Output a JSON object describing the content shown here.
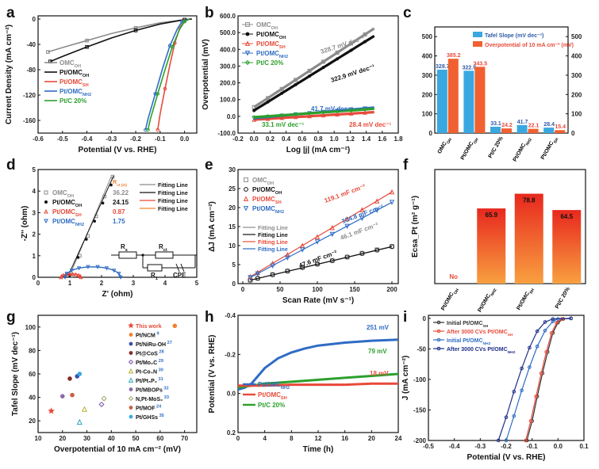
{
  "colors": {
    "ink": "#111111",
    "gray": "#8c8c8c",
    "red": "#e84a3a",
    "blue": "#2f6cc4",
    "green": "#2ca02c",
    "navy": "#1f2f8a",
    "orange": "#f08030",
    "lightblue": "#3aa8e0"
  },
  "panels": {
    "a": "a",
    "b": "b",
    "c": "c",
    "d": "d",
    "e": "e",
    "f": "f",
    "g": "g",
    "h": "h",
    "i": "i"
  },
  "chart_data": [
    {
      "id": "a",
      "type": "line",
      "xlabel": "Potential (V vs. RHE)",
      "ylabel": "Current Density (mA cm⁻²)",
      "xlim": [
        -0.6,
        0.05
      ],
      "ylim": [
        -180,
        5
      ],
      "xticks": [
        "-0.6",
        "-0.5",
        "-0.4",
        "-0.3",
        "-0.2",
        "-0.1",
        "0.0"
      ],
      "yticks": [
        "0",
        "-40",
        "-80",
        "-120",
        "-160"
      ],
      "legend": [
        "OMC_OH",
        "Pt/OMC_OH",
        "Pt/OMC_SH",
        "Pt/OMC_NH2",
        "Pt/C 20%"
      ],
      "series": [
        {
          "name": "OMC_OH",
          "color": "#8c8c8c",
          "x": [
            -0.56,
            -0.5,
            -0.4,
            -0.3,
            -0.2,
            -0.1,
            0.0,
            0.03
          ],
          "y": [
            -52,
            -45,
            -34,
            -23,
            -14,
            -6,
            -1,
            0
          ]
        },
        {
          "name": "Pt/OMC_OH",
          "color": "#111111",
          "x": [
            -0.55,
            -0.5,
            -0.4,
            -0.3,
            -0.2,
            -0.1,
            0.0,
            0.03
          ],
          "y": [
            -67,
            -59,
            -44,
            -30,
            -18,
            -8,
            -1,
            0
          ]
        },
        {
          "name": "Pt/OMC_SH",
          "color": "#e84a3a",
          "x": [
            -0.11,
            -0.1,
            -0.08,
            -0.06,
            -0.04,
            -0.02,
            0.0,
            0.02
          ],
          "y": [
            -175,
            -150,
            -110,
            -72,
            -38,
            -14,
            -3,
            0
          ]
        },
        {
          "name": "Pt/OMC_NH2",
          "color": "#2f6cc4",
          "x": [
            -0.16,
            -0.15,
            -0.12,
            -0.09,
            -0.06,
            -0.03,
            -0.01,
            0.02
          ],
          "y": [
            -175,
            -158,
            -118,
            -78,
            -42,
            -16,
            -4,
            0
          ]
        },
        {
          "name": "Pt/C 20%",
          "color": "#2ca02c",
          "x": [
            -0.15,
            -0.14,
            -0.11,
            -0.08,
            -0.05,
            -0.02,
            0.0,
            0.02
          ],
          "y": [
            -175,
            -158,
            -118,
            -80,
            -44,
            -16,
            -4,
            0
          ]
        }
      ]
    },
    {
      "id": "b",
      "type": "line",
      "xlabel": "Log |j| (mA cm⁻²)",
      "ylabel": "Overpotential (mV)",
      "xlim": [
        -0.2,
        1.8
      ],
      "ylim": [
        -100,
        600
      ],
      "xticks": [
        "-0.2",
        "0.0",
        "0.2",
        "0.4",
        "0.6",
        "0.8",
        "1.0",
        "1.2",
        "1.4",
        "1.6",
        "1.8"
      ],
      "yticks": [
        "-100.0",
        "0.0",
        "100.0",
        "200.0",
        "300.0",
        "400.0",
        "500.0",
        "600.0"
      ],
      "legend": [
        "OMC_OH",
        "Pt/OMC_OH",
        "Pt/OMC_SH",
        "Pt/OMC_NH2",
        "Pt/C 20%"
      ],
      "annotations": [
        "328.7 mV dec⁻¹",
        "322.9 mV dec⁻¹",
        "41.7 mV dec⁻¹",
        "33.1 mV dec⁻¹",
        "28.4 mV dec⁻¹"
      ],
      "series": [
        {
          "name": "OMC_OH",
          "color": "#8c8c8c",
          "x": [
            0.0,
            1.5
          ],
          "y": [
            55,
            525
          ]
        },
        {
          "name": "Pt/OMC_OH",
          "color": "#111111",
          "x": [
            0.0,
            1.5
          ],
          "y": [
            35,
            480
          ]
        },
        {
          "name": "Pt/OMC_SH",
          "color": "#e84a3a",
          "x": [
            0.0,
            1.5
          ],
          "y": [
            -20,
            25
          ]
        },
        {
          "name": "Pt/OMC_NH2",
          "color": "#2f6cc4",
          "x": [
            0.0,
            1.5
          ],
          "y": [
            -10,
            52
          ]
        },
        {
          "name": "Pt/C 20%",
          "color": "#2ca02c",
          "x": [
            0.0,
            1.5
          ],
          "y": [
            -5,
            45
          ]
        }
      ]
    },
    {
      "id": "c",
      "type": "bar",
      "categories": [
        "OMC_OH",
        "Pt/OMC_OH",
        "Pt/C 20%",
        "Pt/OMC_NH2",
        "Pt/OMC_SH"
      ],
      "series": [
        {
          "name": "Tafel Slope (mV dec⁻¹)",
          "color": "#3aa8e0",
          "values": [
            328.7,
            322.9,
            33.1,
            41.7,
            28.4
          ]
        },
        {
          "name": "Overpotential of 10 mA cm⁻² (mV)",
          "color": "#f06030",
          "values": [
            385.2,
            343.5,
            24.2,
            22.1,
            15.4
          ]
        }
      ],
      "labels1": [
        "328.7",
        "322.9",
        "33.1",
        "41.7",
        "28.4"
      ],
      "labels2": [
        "385.2",
        "343.5",
        "24.2",
        "22.1",
        "15.4"
      ],
      "ylim": [
        0,
        550
      ],
      "yticks": [
        "0",
        "100",
        "200",
        "300",
        "400",
        "500"
      ]
    },
    {
      "id": "d",
      "type": "scatter",
      "xlabel": "Z' (ohm)",
      "ylabel": "-Z'' (ohm)",
      "xlim": [
        0,
        5
      ],
      "ylim": [
        0,
        5
      ],
      "xticks": [
        "0",
        "1",
        "2",
        "3",
        "4",
        "5"
      ],
      "yticks": [
        "0",
        "1",
        "2",
        "3",
        "4",
        "5"
      ],
      "table_header": "R_ct (Ω)",
      "legend": [
        {
          "name": "OMC_OH",
          "value": "36.22"
        },
        {
          "name": "Pt/OMC_OH",
          "value": "24.15"
        },
        {
          "name": "Pt/OMC_SH",
          "value": "0.87"
        },
        {
          "name": "Pt/OMC_NH2",
          "value": "1.75"
        }
      ],
      "fit_labels": [
        "Fitting Line",
        "Fitting Line",
        "Fitting Line",
        "Fitting Line"
      ],
      "circuit": {
        "rs": "R_s",
        "rct": "R_ct",
        "r1": "R_1",
        "cpe": "CPE"
      }
    },
    {
      "id": "e",
      "type": "scatter",
      "xlabel": "Scan Rate (mV s⁻¹)",
      "ylabel": "ΔJ (mA cm⁻²)",
      "xlim": [
        0,
        200
      ],
      "ylim": [
        0,
        30
      ],
      "xticks": [
        "0",
        "50",
        "100",
        "150",
        "200"
      ],
      "yticks": [
        "0",
        "5",
        "10",
        "15",
        "20",
        "25",
        "30"
      ],
      "legend": [
        "OMC_OH",
        "Pt/OMC_OH",
        "Pt/OMC_SH",
        "Pt/OMC_NH2"
      ],
      "fit_labels": [
        "Fitting Line",
        "Fitting Line",
        "Fitting Line",
        "Fitting Line"
      ],
      "annotations": [
        "119.1 mF cm⁻²",
        "104.8 mF cm⁻²",
        "46.1 mF cm⁻²",
        "47.6 mF cm⁻²"
      ],
      "x": [
        10,
        20,
        40,
        60,
        80,
        100,
        120,
        140,
        160,
        180,
        200
      ],
      "series": [
        {
          "name": "OMC_OH",
          "color": "#8c8c8c",
          "y": [
            0.9,
            1.4,
            2.4,
            3.3,
            4.3,
            5.2,
            6.1,
            7.0,
            8.0,
            8.9,
            9.8
          ]
        },
        {
          "name": "Pt/OMC_OH",
          "color": "#111111",
          "y": [
            0.9,
            1.4,
            2.3,
            3.3,
            4.2,
            5.1,
            6.0,
            7.0,
            7.9,
            8.8,
            9.7
          ]
        },
        {
          "name": "Pt/OMC_SH",
          "color": "#e84a3a",
          "y": [
            1.8,
            2.9,
            5.3,
            7.6,
            10.0,
            12.3,
            14.7,
            17.0,
            19.4,
            21.7,
            24.1
          ]
        },
        {
          "name": "Pt/OMC_NH2",
          "color": "#2f6cc4",
          "y": [
            1.6,
            2.6,
            4.7,
            6.8,
            8.9,
            11.0,
            13.0,
            15.1,
            17.2,
            19.3,
            21.4
          ]
        }
      ]
    },
    {
      "id": "f",
      "type": "bar",
      "ylabel": "Ecsa_Pt (m² g⁻¹)",
      "categories": [
        "Pt/OMC_OH",
        "Pt/OMC_NH2",
        "Pt/OMC_SH",
        "Pt/C 20%"
      ],
      "values": [
        0,
        65.9,
        78.8,
        64.5
      ],
      "labels": [
        "No",
        "65.9",
        "78.8",
        "64.5"
      ],
      "ylim": [
        0,
        100
      ]
    },
    {
      "id": "g",
      "type": "scatter",
      "xlabel": "Overpotential of 10 mA cm⁻² (mV)",
      "ylabel": "Tafel Slope (mV dec⁻¹)",
      "xlim": [
        10,
        75
      ],
      "ylim": [
        10,
        110
      ],
      "xticks": [
        "10",
        "20",
        "30",
        "40",
        "50",
        "60",
        "70"
      ],
      "yticks": [
        "20",
        "40",
        "60",
        "80",
        "100"
      ],
      "points": [
        {
          "name": "This work",
          "ref": "",
          "color": "#e84a3a",
          "x": 15.4,
          "y": 28.4
        },
        {
          "name": "Pt/NCM",
          "ref": "9",
          "color": "#f08030",
          "x": 66,
          "y": 101
        },
        {
          "name": "Pt/NiRu-OH",
          "ref": "27",
          "color": "#3a4fb0",
          "x": 26,
          "y": 58
        },
        {
          "name": "Pt@CoS",
          "ref": "28",
          "color": "#8a2a2a",
          "x": 23,
          "y": 56
        },
        {
          "name": "Pt/Mo₂C",
          "ref": "29",
          "color": "#7a55b0",
          "x": 36,
          "y": 34
        },
        {
          "name": "Pt-Co₄N",
          "ref": "30",
          "color": "#b5b030",
          "x": 29,
          "y": 30
        },
        {
          "name": "Pt/Pt₅P₂",
          "ref": "31",
          "color": "#30a8c0",
          "x": 27,
          "y": 19
        },
        {
          "name": "Pt/MBOPs",
          "ref": "32",
          "color": "#8a6aa8",
          "x": 20,
          "y": 41
        },
        {
          "name": "N,Pt-MoS₂",
          "ref": "33",
          "color": "#a0a070",
          "x": 37,
          "y": 39
        },
        {
          "name": "Pt/MOF",
          "ref": "24",
          "color": "#c86040",
          "x": 24,
          "y": 42
        },
        {
          "name": "Pt/GHSs",
          "ref": "35",
          "color": "#3aa8e0",
          "x": 27,
          "y": 60
        }
      ]
    },
    {
      "id": "h",
      "type": "line",
      "xlabel": "Time (h)",
      "ylabel": "Potential (V vs. RHE)",
      "xlim": [
        0,
        24
      ],
      "ylim": [
        -0.4,
        0.2
      ],
      "xticks": [
        "0",
        "4",
        "8",
        "12",
        "16",
        "20",
        "24"
      ],
      "yticks": [
        "-0.4",
        "-0.2",
        "0.0",
        "0.2"
      ],
      "legend": [
        "Pt/OMC_NH2",
        "Pt/OMC_SH",
        "Pt/C 20%"
      ],
      "annotations": [
        "251 mV",
        "79 mV",
        "18 mV"
      ],
      "series": [
        {
          "name": "Pt/OMC_NH2",
          "color": "#2f6cc4",
          "x": [
            0,
            1,
            2,
            3,
            4,
            6,
            8,
            10,
            12,
            16,
            20,
            24
          ],
          "y": [
            -0.02,
            -0.03,
            -0.05,
            -0.09,
            -0.13,
            -0.18,
            -0.21,
            -0.23,
            -0.245,
            -0.26,
            -0.27,
            -0.275
          ]
        },
        {
          "name": "Pt/C 20%",
          "color": "#2ca02c",
          "x": [
            0,
            2,
            4,
            8,
            12,
            16,
            20,
            24
          ],
          "y": [
            -0.03,
            -0.04,
            -0.05,
            -0.06,
            -0.07,
            -0.08,
            -0.09,
            -0.1
          ]
        },
        {
          "name": "Pt/OMC_SH",
          "color": "#e84a3a",
          "x": [
            0,
            4,
            8,
            12,
            16,
            20,
            24
          ],
          "y": [
            -0.04,
            -0.04,
            -0.045,
            -0.045,
            -0.045,
            -0.05,
            -0.05
          ]
        }
      ]
    },
    {
      "id": "i",
      "type": "line",
      "xlabel": "Potential (V vs. RHE)",
      "ylabel": "J (mA cm⁻²)",
      "xlim": [
        -0.5,
        0.1
      ],
      "ylim": [
        -200,
        5
      ],
      "xticks": [
        "-0.5",
        "-0.4",
        "-0.3",
        "-0.2",
        "-0.1",
        "0.0",
        "0.1"
      ],
      "yticks": [
        "0",
        "-50",
        "-100",
        "-150",
        "-200"
      ],
      "legend": [
        "Initial Pt/OMC_SH",
        "After 3000 CVs Pt/OMC_SH",
        "Initial Pt/OMC_NH2",
        "After 3000 CVs Pt/OMC_NH2"
      ],
      "series": [
        {
          "name": "Initial Pt/OMC_SH",
          "color": "#333333",
          "x": [
            -0.12,
            -0.1,
            -0.08,
            -0.06,
            -0.04,
            -0.02,
            0.0,
            0.02,
            0.05
          ],
          "y": [
            -200,
            -168,
            -128,
            -90,
            -55,
            -24,
            -7,
            -1,
            0
          ]
        },
        {
          "name": "After 3000 CVs Pt/OMC_SH",
          "color": "#e84a3a",
          "x": [
            -0.125,
            -0.105,
            -0.085,
            -0.065,
            -0.045,
            -0.025,
            -0.005,
            0.015,
            0.05
          ],
          "y": [
            -200,
            -168,
            -128,
            -90,
            -55,
            -24,
            -7,
            -1,
            0
          ]
        },
        {
          "name": "Initial Pt/OMC_NH2",
          "color": "#2f6cc4",
          "x": [
            -0.2,
            -0.17,
            -0.14,
            -0.11,
            -0.08,
            -0.05,
            -0.02,
            0.0,
            0.05
          ],
          "y": [
            -200,
            -160,
            -118,
            -80,
            -46,
            -20,
            -5,
            -1,
            0
          ]
        },
        {
          "name": "After 3000 CVs Pt/OMC_NH2",
          "color": "#1f2f8a",
          "x": [
            -0.23,
            -0.2,
            -0.17,
            -0.14,
            -0.11,
            -0.08,
            -0.05,
            -0.02,
            0.05
          ],
          "y": [
            -200,
            -162,
            -120,
            -82,
            -48,
            -21,
            -6,
            -1,
            0
          ]
        }
      ]
    }
  ]
}
